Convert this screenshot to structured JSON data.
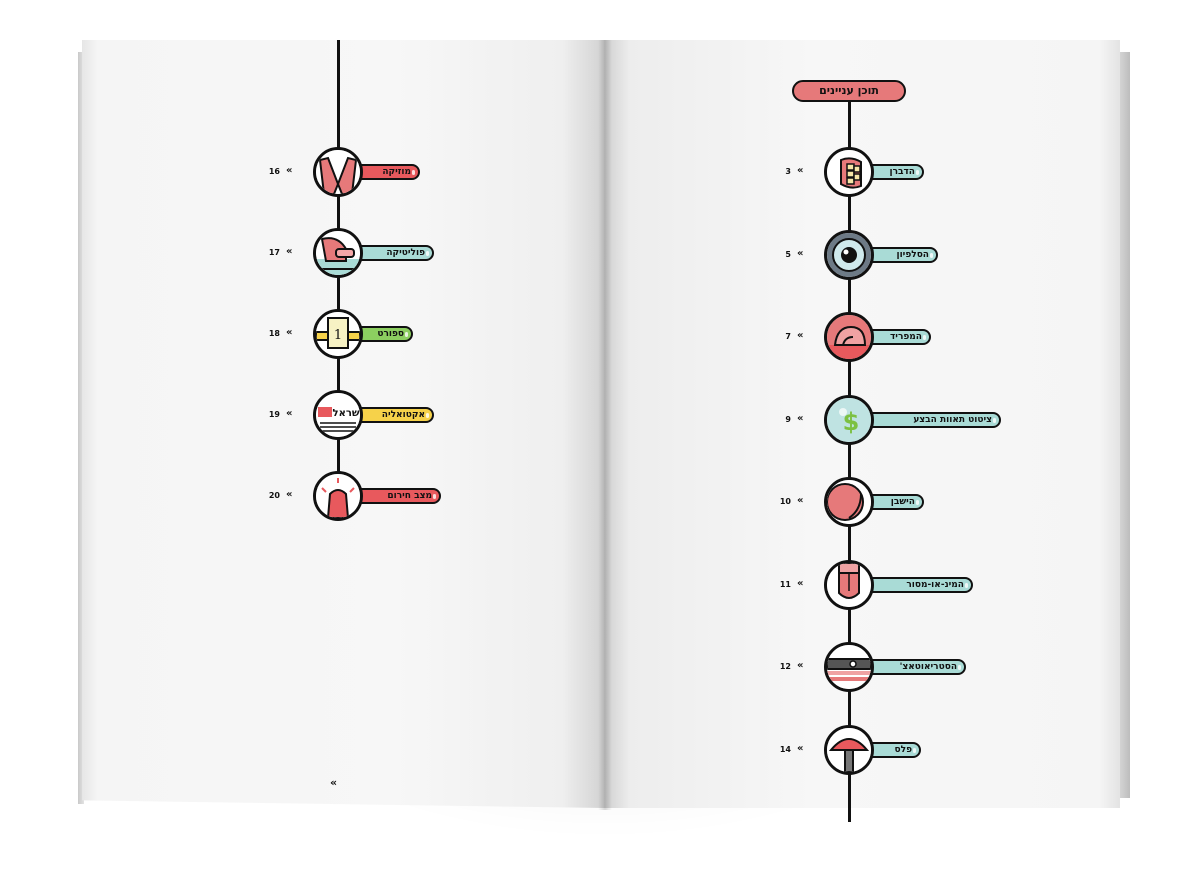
{
  "toc_title": "תוכן עניינים",
  "arrow_glyph": "«",
  "footer_arrow": "«",
  "colors": {
    "red": "#e8595d",
    "teal": "#a9dbd6",
    "green": "#8ccf60",
    "yellow": "#f6d24a",
    "pink": "#e6797a",
    "ink": "#111111"
  },
  "left_entries": [
    {
      "label": "מוזיקה",
      "page": "16",
      "color": "#e8595d",
      "icon": "peace-sign-hand-icon"
    },
    {
      "label": "פוליטיקה",
      "page": "17",
      "color": "#a9dbd6",
      "icon": "handshake-icon"
    },
    {
      "label": "ספורט",
      "page": "18",
      "color": "#8ccf60",
      "icon": "podium-icon"
    },
    {
      "label": "אקטואליה",
      "page": "19",
      "color": "#f6d24a",
      "icon": "newspaper-icon"
    },
    {
      "label": "מצב חירום",
      "page": "20",
      "color": "#e8595d",
      "icon": "siren-icon"
    }
  ],
  "right_entries": [
    {
      "label": "הדברן",
      "page": "3",
      "color": "#a9dbd6",
      "icon": "teeth-icon"
    },
    {
      "label": "הסלפיון",
      "page": "5",
      "color": "#a9dbd6",
      "icon": "eye-icon"
    },
    {
      "label": "המפריד",
      "page": "7",
      "color": "#a9dbd6",
      "icon": "brain-icon"
    },
    {
      "label": "ציטוט תאוות הבצע",
      "page": "9",
      "color": "#a9dbd6",
      "icon": "dollar-icon"
    },
    {
      "label": "הישבן",
      "page": "10",
      "color": "#a9dbd6",
      "icon": "buttocks-icon"
    },
    {
      "label": "המינ-או-מסור",
      "page": "11",
      "color": "#a9dbd6",
      "icon": "head-icon"
    },
    {
      "label": "הסטריאוטאצ'",
      "page": "12",
      "color": "#a9dbd6",
      "icon": "stereo-icon"
    },
    {
      "label": "פלס",
      "page": "14",
      "color": "#a9dbd6",
      "icon": "plunger-icon"
    }
  ]
}
